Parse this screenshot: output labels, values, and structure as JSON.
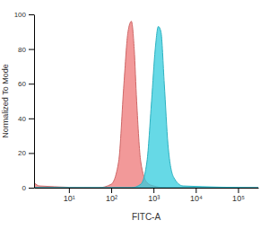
{
  "chart_data": {
    "type": "area",
    "x_label": "FITC-A",
    "y_label": "Normalized To Mode",
    "log": "x",
    "grid": false,
    "xlim": [
      1.5,
      300000
    ],
    "ylim": [
      0,
      100
    ],
    "xticks": [
      {
        "value": 10,
        "label": "10¹"
      },
      {
        "value": 100,
        "label": "10²"
      },
      {
        "value": 1000,
        "label": "10³"
      },
      {
        "value": 10000,
        "label": "10⁴"
      },
      {
        "value": 100000,
        "label": "10⁵"
      }
    ],
    "yticks": [
      0,
      20,
      40,
      60,
      80,
      100
    ],
    "series": [
      {
        "color": "#ee7777",
        "x": [
          1.5,
          2,
          50,
          100,
          150,
          200,
          250,
          300,
          350,
          400,
          500,
          700,
          1000,
          2000,
          300000
        ],
        "values": [
          3,
          1,
          0,
          2,
          15,
          60,
          90,
          96,
          80,
          50,
          15,
          3,
          1,
          0,
          0
        ]
      },
      {
        "color": "#33ccdd",
        "x": [
          1.5,
          300,
          500,
          700,
          900,
          1100,
          1300,
          1500,
          1800,
          2200,
          3000,
          5000,
          300000
        ],
        "values": [
          0,
          0,
          2,
          15,
          50,
          80,
          93,
          90,
          60,
          25,
          6,
          1,
          0
        ]
      }
    ]
  }
}
